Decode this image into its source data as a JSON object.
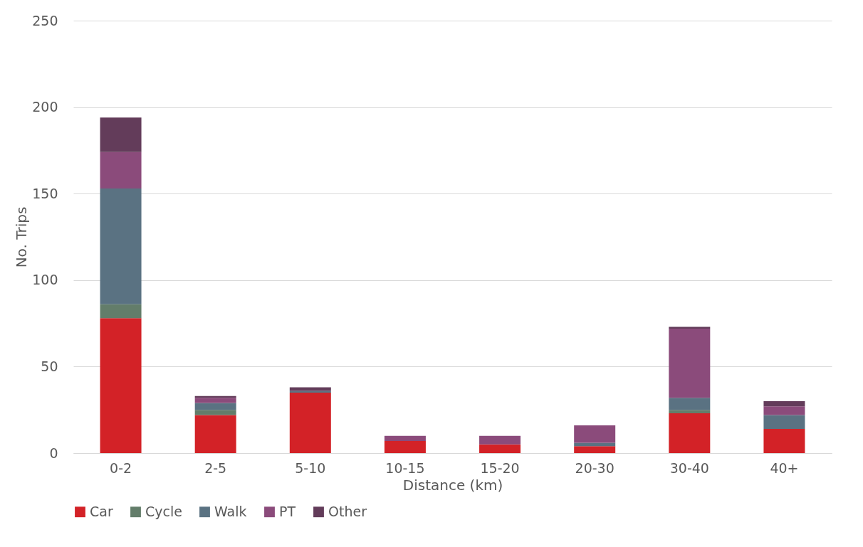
{
  "chart_data": {
    "type": "bar",
    "stacked": true,
    "xlabel": "Distance (km)",
    "ylabel": "No. Trips",
    "categories": [
      "0-2",
      "2-5",
      "5-10",
      "10-15",
      "15-20",
      "20-30",
      "30-40",
      "40+"
    ],
    "series": [
      {
        "name": "Car",
        "color": "#d32227",
        "values": [
          78,
          22,
          35,
          7,
          5,
          4,
          23,
          14
        ]
      },
      {
        "name": "Cycle",
        "color": "#637d6a",
        "values": [
          8,
          3,
          0,
          0,
          0,
          0,
          2,
          0
        ]
      },
      {
        "name": "Walk",
        "color": "#5a7282",
        "values": [
          67,
          4,
          1,
          0,
          0,
          2,
          7,
          8
        ]
      },
      {
        "name": "PT",
        "color": "#8b4b7b",
        "values": [
          21,
          3,
          0,
          3,
          5,
          10,
          40,
          5
        ]
      },
      {
        "name": "Other",
        "color": "#633c5a",
        "values": [
          20,
          1,
          2,
          0,
          0,
          0,
          1,
          3
        ]
      }
    ],
    "ylim": [
      0,
      250
    ],
    "yticks": [
      0,
      50,
      100,
      150,
      200,
      250
    ],
    "grid": "y",
    "legend": "bottom"
  }
}
